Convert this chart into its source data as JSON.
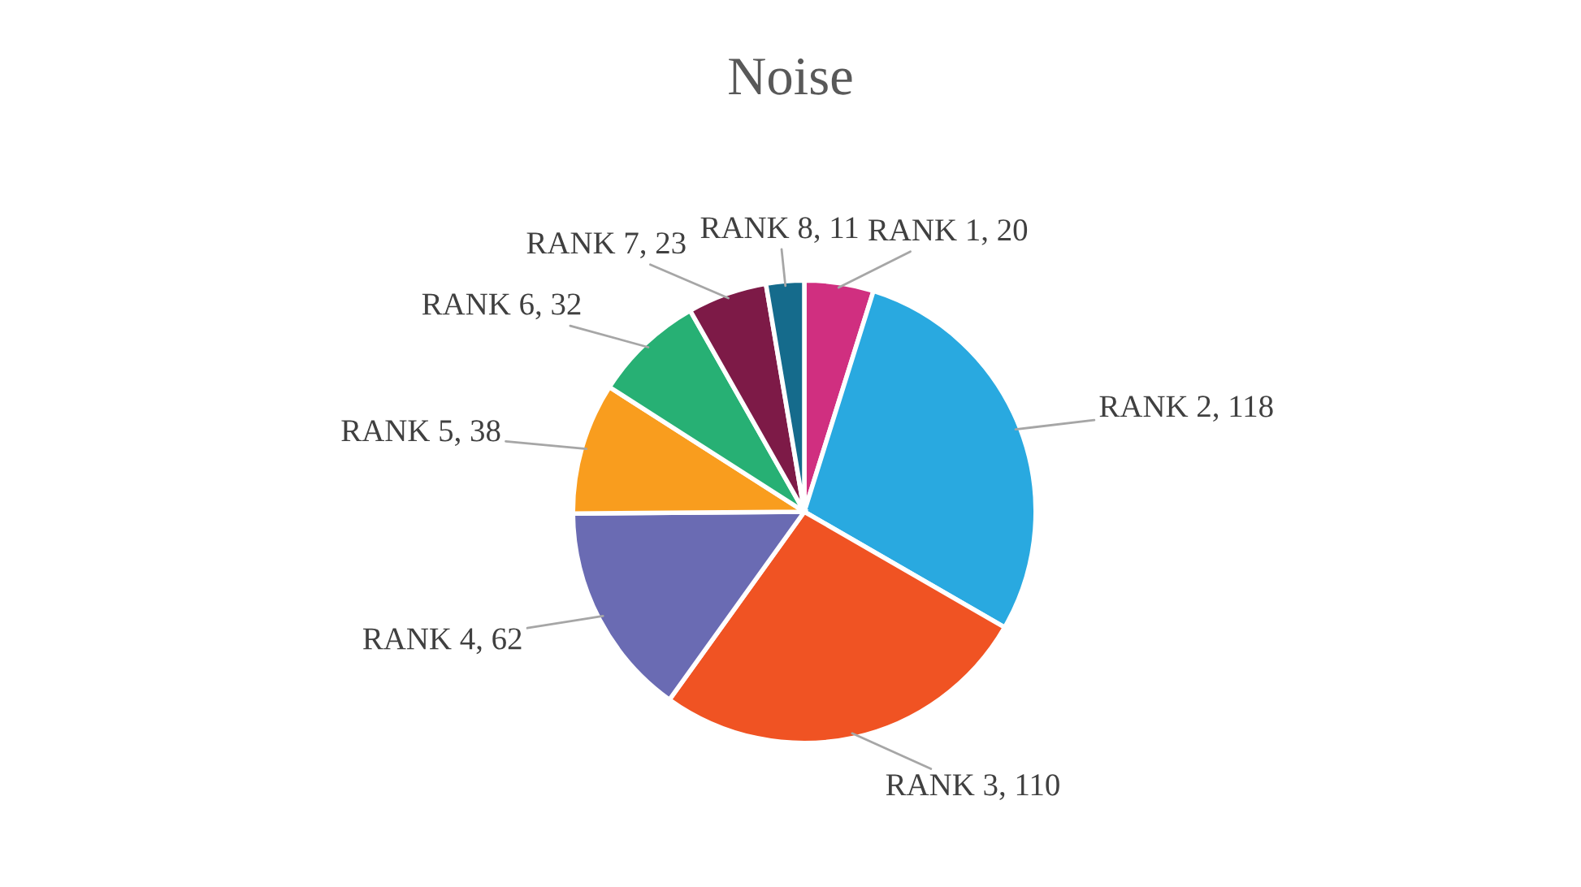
{
  "chart_data": {
    "type": "pie",
    "title": "Noise",
    "categories": [
      "RANK 1, 20",
      "RANK 2, 118",
      "RANK 3, 110",
      "RANK 4, 62",
      "RANK 5, 38",
      "RANK 6, 32",
      "RANK 7, 23",
      "RANK 8, 11"
    ],
    "values": [
      20,
      118,
      110,
      62,
      38,
      32,
      23,
      11
    ],
    "colors": [
      "#d02f80",
      "#29a9e0",
      "#f05323",
      "#6a6bb3",
      "#f99d1e",
      "#27b074",
      "#7d1a47",
      "#156b8c"
    ],
    "legend": false
  }
}
